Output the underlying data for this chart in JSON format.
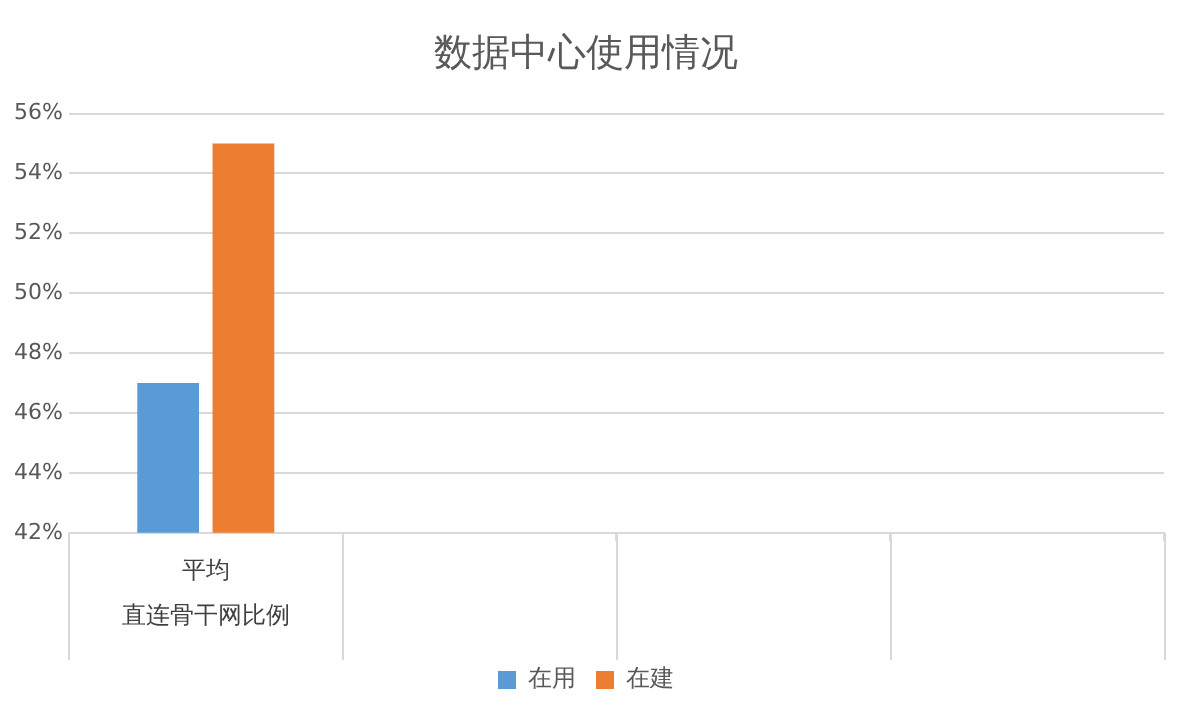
{
  "chart_data": {
    "type": "bar",
    "title": "数据中心使用情况",
    "categories": [
      "平均直连骨干网比例",
      null,
      null,
      null
    ],
    "series": [
      {
        "name": "在用",
        "color": "#5b9bd5",
        "values": [
          47,
          null,
          null,
          null
        ]
      },
      {
        "name": "在建",
        "color": "#ed7d31",
        "values": [
          55,
          null,
          null,
          null
        ]
      }
    ],
    "ylim": [
      42,
      56
    ],
    "yticks": [
      {
        "value": 42,
        "label": "42%"
      },
      {
        "value": 44,
        "label": "44%"
      },
      {
        "value": 46,
        "label": "46%"
      },
      {
        "value": 48,
        "label": "48%"
      },
      {
        "value": 50,
        "label": "50%"
      },
      {
        "value": 52,
        "label": "52%"
      },
      {
        "value": 54,
        "label": "54%"
      },
      {
        "value": 56,
        "label": "56%"
      }
    ],
    "grid": "y",
    "legend": "bottom"
  }
}
